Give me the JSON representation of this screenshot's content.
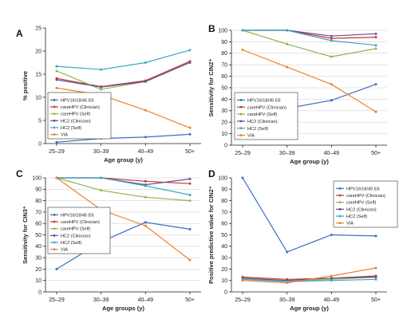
{
  "chart_data": [
    {
      "panel": "A",
      "type": "line",
      "categories": [
        "25–29",
        "30–39",
        "40–49",
        "50+"
      ],
      "xlabel": "Age group (y)",
      "ylabel": "% positive",
      "ylim": [
        0,
        25
      ],
      "yticks": [
        0,
        5,
        10,
        15,
        20,
        25
      ],
      "grid": false,
      "legend": "left",
      "series": [
        {
          "name": "HPV16/18/45 E6",
          "color": "#3a6ec2",
          "values": [
            0.3,
            1.1,
            1.4,
            2.0
          ]
        },
        {
          "name": "careHPV (Clinician)",
          "color": "#c1382f",
          "values": [
            14.1,
            12.3,
            13.6,
            17.8
          ]
        },
        {
          "name": "careHPV (Self)",
          "color": "#8db84a",
          "values": [
            15.7,
            11.7,
            13.4,
            17.6
          ]
        },
        {
          "name": "HC2 (Clinician)",
          "color": "#6b4a9a",
          "values": [
            13.8,
            12.2,
            13.4,
            17.5
          ]
        },
        {
          "name": "HC2 (Self)",
          "color": "#3ba8c4",
          "values": [
            16.7,
            16.0,
            17.5,
            20.2
          ]
        },
        {
          "name": "VIA",
          "color": "#e8842c",
          "values": [
            12.0,
            10.5,
            7.2,
            3.4
          ]
        }
      ]
    },
    {
      "panel": "B",
      "type": "line",
      "categories": [
        "25–29",
        "30–39",
        "40–49",
        "50+"
      ],
      "xlabel": "Age group (y)",
      "ylabel": "Sensitivity for CIN2⁺",
      "ylim": [
        0,
        100
      ],
      "yticks": [
        0,
        10,
        20,
        30,
        40,
        50,
        60,
        70,
        80,
        90,
        100
      ],
      "grid": true,
      "legend": "bottom-left",
      "series": [
        {
          "name": "HPV16/18/45 E6",
          "color": "#3a6ec2",
          "values": [
            17,
            32,
            39,
            53
          ]
        },
        {
          "name": "careHPV (Clinician)",
          "color": "#c1382f",
          "values": [
            100,
            100,
            93,
            94
          ]
        },
        {
          "name": "careHPV (Self)",
          "color": "#8db84a",
          "values": [
            100,
            88,
            77,
            84
          ]
        },
        {
          "name": "HC2 (Clinician)",
          "color": "#6b4a9a",
          "values": [
            100,
            100,
            95,
            97
          ]
        },
        {
          "name": "HC2 (Self)",
          "color": "#3ba8c4",
          "values": [
            100,
            100,
            91,
            87
          ]
        },
        {
          "name": "VIA",
          "color": "#e8842c",
          "values": [
            83,
            68,
            53,
            29
          ]
        }
      ]
    },
    {
      "panel": "C",
      "type": "line",
      "categories": [
        "25–29",
        "30–39",
        "40–49",
        "50+"
      ],
      "xlabel": "Age groups (y)",
      "ylabel": "Sensitivity for CIN3⁺",
      "ylim": [
        0,
        100
      ],
      "yticks": [
        0,
        10,
        20,
        30,
        40,
        50,
        60,
        70,
        80,
        90,
        100
      ],
      "grid": true,
      "legend": "center",
      "series": [
        {
          "name": "HPV16/18/45 E6",
          "color": "#3a6ec2",
          "values": [
            20,
            44,
            61,
            55
          ]
        },
        {
          "name": "careHPV (Clinician)",
          "color": "#c1382f",
          "values": [
            100,
            100,
            97,
            95
          ]
        },
        {
          "name": "careHPV (Self)",
          "color": "#8db84a",
          "values": [
            100,
            89,
            83,
            80
          ]
        },
        {
          "name": "HC2 (Clinician)",
          "color": "#6b4a9a",
          "values": [
            100,
            100,
            94,
            99
          ]
        },
        {
          "name": "HC2 (Self)",
          "color": "#3ba8c4",
          "values": [
            100,
            100,
            93,
            85
          ]
        },
        {
          "name": "VIA",
          "color": "#e8842c",
          "values": [
            100,
            72,
            58,
            28
          ]
        }
      ]
    },
    {
      "panel": "D",
      "type": "line",
      "categories": [
        "25–29",
        "30–39",
        "40–49",
        "50+"
      ],
      "xlabel": "Age group (y)",
      "ylabel": "Positive predictive value for CIN2⁺",
      "ylim": [
        0,
        100
      ],
      "yticks": [
        0,
        10,
        20,
        30,
        40,
        50,
        60,
        70,
        80,
        90,
        100
      ],
      "grid": false,
      "legend": "top-right",
      "series": [
        {
          "name": "HPV16/18/45 E6",
          "color": "#3a6ec2",
          "values": [
            100,
            35,
            50,
            49
          ]
        },
        {
          "name": "careHPV (Clinician)",
          "color": "#c1382f",
          "values": [
            13,
            11,
            12,
            14
          ]
        },
        {
          "name": "careHPV (Self)",
          "color": "#8db84a",
          "values": [
            12,
            9,
            11,
            13
          ]
        },
        {
          "name": "HC2 (Clinician)",
          "color": "#6b4a9a",
          "values": [
            12,
            10,
            12,
            13
          ]
        },
        {
          "name": "HC2 (Self)",
          "color": "#3ba8c4",
          "values": [
            11,
            9,
            10,
            11
          ]
        },
        {
          "name": "VIA",
          "color": "#e8842c",
          "values": [
            10,
            8,
            14,
            21
          ]
        }
      ]
    }
  ]
}
